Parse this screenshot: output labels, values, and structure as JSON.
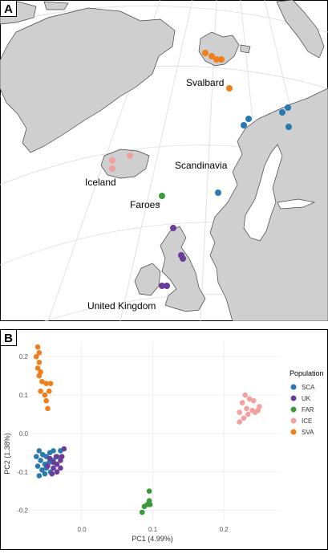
{
  "panel_a": {
    "letter": "A",
    "labels": {
      "svalbard": "Svalbard",
      "scandinavia": "Scandinavia",
      "iceland": "Iceland",
      "faroes": "Faroes",
      "uk": "United Kingdom"
    }
  },
  "panel_b": {
    "letter": "B",
    "legend_title": "Population",
    "legend": [
      {
        "code": "SCA",
        "color": "#2a7ab0"
      },
      {
        "code": "UK",
        "color": "#6a3d9a"
      },
      {
        "code": "FAR",
        "color": "#3a9a3a"
      },
      {
        "code": "ICE",
        "color": "#f2a0a0"
      },
      {
        "code": "SVA",
        "color": "#f07e1a"
      }
    ]
  },
  "chart_data": {
    "type": "scatter",
    "xlabel": "PC1 (4.99%)",
    "ylabel": "PC2 (1.38%)",
    "xlim": [
      -0.07,
      0.28
    ],
    "ylim": [
      -0.23,
      0.24
    ],
    "x_ticks": [
      0.0,
      0.1,
      0.2
    ],
    "x_tick_labels": [
      "0.0",
      "0.1",
      "0.2"
    ],
    "y_ticks": [
      -0.2,
      -0.1,
      0.0,
      0.1,
      0.2
    ],
    "y_tick_labels": [
      "-0.2",
      "-0.1",
      "0.0",
      "0.1",
      "0.2"
    ],
    "grid": true,
    "legend_position": "right",
    "series": [
      {
        "name": "SCA",
        "points": [
          [
            -0.06,
            -0.045
          ],
          [
            -0.055,
            -0.055
          ],
          [
            -0.05,
            -0.06
          ],
          [
            -0.045,
            -0.05
          ],
          [
            -0.04,
            -0.045
          ],
          [
            -0.058,
            -0.07
          ],
          [
            -0.052,
            -0.08
          ],
          [
            -0.046,
            -0.075
          ],
          [
            -0.04,
            -0.07
          ],
          [
            -0.062,
            -0.085
          ],
          [
            -0.056,
            -0.095
          ],
          [
            -0.05,
            -0.09
          ],
          [
            -0.044,
            -0.1
          ],
          [
            -0.03,
            -0.045
          ],
          [
            -0.035,
            -0.06
          ],
          [
            -0.06,
            -0.11
          ],
          [
            -0.052,
            -0.105
          ],
          [
            -0.064,
            -0.06
          ]
        ]
      },
      {
        "name": "UK",
        "points": [
          [
            -0.045,
            -0.065
          ],
          [
            -0.04,
            -0.075
          ],
          [
            -0.035,
            -0.08
          ],
          [
            -0.03,
            -0.07
          ],
          [
            -0.025,
            -0.04
          ],
          [
            -0.04,
            -0.09
          ],
          [
            -0.035,
            -0.1
          ],
          [
            -0.03,
            -0.09
          ],
          [
            -0.048,
            -0.085
          ],
          [
            -0.028,
            -0.06
          ],
          [
            -0.042,
            -0.105
          ],
          [
            -0.036,
            -0.06
          ]
        ]
      },
      {
        "name": "FAR",
        "points": [
          [
            0.095,
            -0.15
          ],
          [
            0.095,
            -0.175
          ],
          [
            0.092,
            -0.185
          ],
          [
            0.088,
            -0.19
          ],
          [
            0.085,
            -0.205
          ],
          [
            0.096,
            -0.185
          ]
        ]
      },
      {
        "name": "ICE",
        "points": [
          [
            0.23,
            0.1
          ],
          [
            0.236,
            0.09
          ],
          [
            0.242,
            0.085
          ],
          [
            0.226,
            0.08
          ],
          [
            0.232,
            0.065
          ],
          [
            0.24,
            0.06
          ],
          [
            0.248,
            0.06
          ],
          [
            0.222,
            0.055
          ],
          [
            0.234,
            0.05
          ],
          [
            0.244,
            0.055
          ],
          [
            0.25,
            0.07
          ],
          [
            0.228,
            0.04
          ],
          [
            0.222,
            0.03
          ]
        ]
      },
      {
        "name": "SVA",
        "points": [
          [
            -0.062,
            0.225
          ],
          [
            -0.06,
            0.21
          ],
          [
            -0.064,
            0.2
          ],
          [
            -0.06,
            0.185
          ],
          [
            -0.062,
            0.17
          ],
          [
            -0.058,
            0.16
          ],
          [
            -0.06,
            0.15
          ],
          [
            -0.056,
            0.135
          ],
          [
            -0.05,
            0.13
          ],
          [
            -0.058,
            0.11
          ],
          [
            -0.052,
            0.1
          ],
          [
            -0.046,
            0.11
          ],
          [
            -0.05,
            0.085
          ],
          [
            -0.044,
            0.13
          ],
          [
            -0.048,
            0.065
          ]
        ]
      }
    ]
  }
}
